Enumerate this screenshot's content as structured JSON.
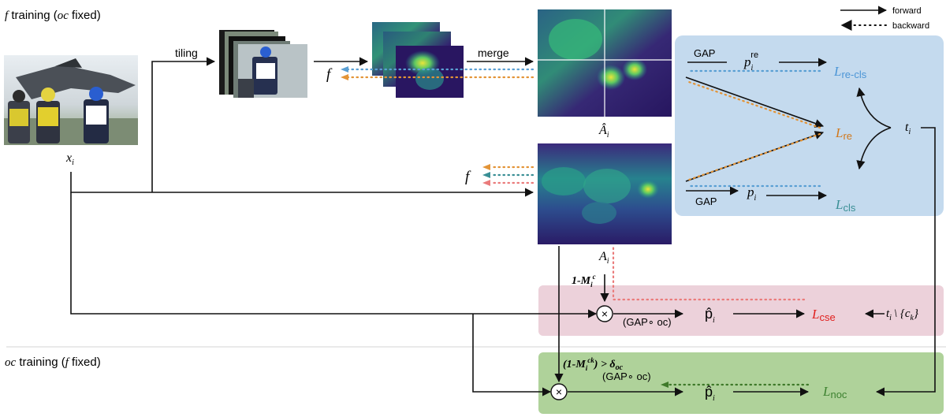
{
  "sections": {
    "f_training": {
      "sym": "f",
      "pre": " training (",
      "oc": "oc",
      "post": " fixed)"
    },
    "oc_training": {
      "oc": "oc",
      "pre": " training (",
      "sym": "f",
      "post": " fixed)"
    }
  },
  "legend": {
    "forward": "forward",
    "backward": "backward"
  },
  "labels": {
    "tiling": "tiling",
    "merge": "merge",
    "f": "f",
    "xi_base": "x",
    "xi_sub": "i",
    "Ahat_base": "Â",
    "Ahat_sub": "i",
    "A_base": "A",
    "A_sub": "i",
    "gap": "GAP",
    "p_re_base": "p",
    "p_re_sub": "i",
    "p_re_sup": "re",
    "p_base": "p",
    "p_sub": "i",
    "phat_base": "p̂",
    "phat_sub": "i",
    "t_base": "t",
    "t_sub": "i",
    "t_set": "\\ {c",
    "t_set_sub": "k",
    "t_set_end": "}",
    "gap_oc": "(GAP∘ oc)",
    "one_minus_m": "1-M",
    "one_minus_m_sub": "i",
    "one_minus_m_sup": "c",
    "threshold_pre": "(1-M",
    "threshold_sub": "i",
    "threshold_sup": "ck",
    "threshold_post": ") > δ",
    "threshold_oc": "oc",
    "times": "×"
  },
  "losses": {
    "L_sym": "L",
    "re_cls": "re-cls",
    "re": "re",
    "cls": "cls",
    "cse": "cse",
    "noc": "noc"
  },
  "colors": {
    "blue_panel": "#c4daee",
    "pink_panel": "#ecd1da",
    "green_panel": "#afd29a",
    "loss_blue": "#4b95d6",
    "loss_orange": "#d1781c",
    "loss_teal": "#3a8f95",
    "loss_red": "#e0201e",
    "loss_green": "#3d8230",
    "dot_blue": "#5a9fd3",
    "dot_orange": "#e39437",
    "dot_pink": "#ea7b7b",
    "dot_green": "#3f7a2a"
  }
}
